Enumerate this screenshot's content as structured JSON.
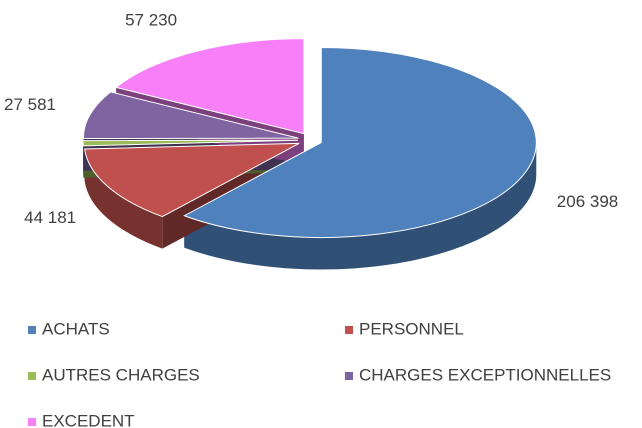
{
  "chart_data": {
    "type": "pie",
    "categories": [
      "ACHATS",
      "PERSONNEL",
      "AUTRES CHARGES",
      "CHARGES EXCEPTIONNELLES",
      "EXCEDENT"
    ],
    "values": [
      206398,
      44181,
      3000,
      27581,
      57230
    ],
    "value_labels": [
      "206 398",
      "44 181",
      null,
      "27 581",
      "57 230"
    ],
    "colors": [
      "#4f81bd",
      "#c0504d",
      "#9bbb59",
      "#8064a2",
      "#f77ff7"
    ],
    "legend": "bottom"
  }
}
